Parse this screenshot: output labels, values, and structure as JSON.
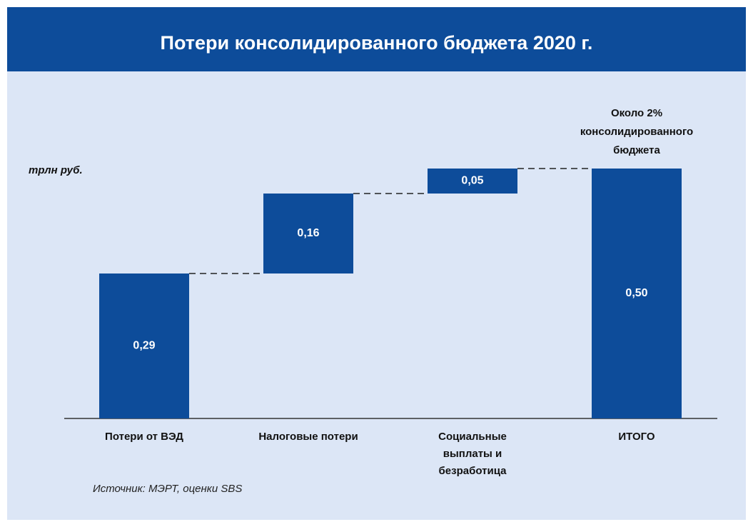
{
  "chart_data": {
    "type": "waterfall",
    "title": "Потери консолидированного бюджета 2020 г.",
    "unit_label": "трлн руб.",
    "annotation": "Около 2% консолидированного бюджета",
    "source": "Источник: МЭРТ, оценки SBS",
    "categories": [
      "Потери от ВЭД",
      "Налоговые потери",
      "Социальные выплаты и безработица",
      "ИТОГО"
    ],
    "values": [
      0.29,
      0.16,
      0.05,
      0.5
    ],
    "value_labels": [
      "0,29",
      "0,16",
      "0,05",
      "0,50"
    ],
    "total_index": 3,
    "color": "#0d4c9a"
  }
}
